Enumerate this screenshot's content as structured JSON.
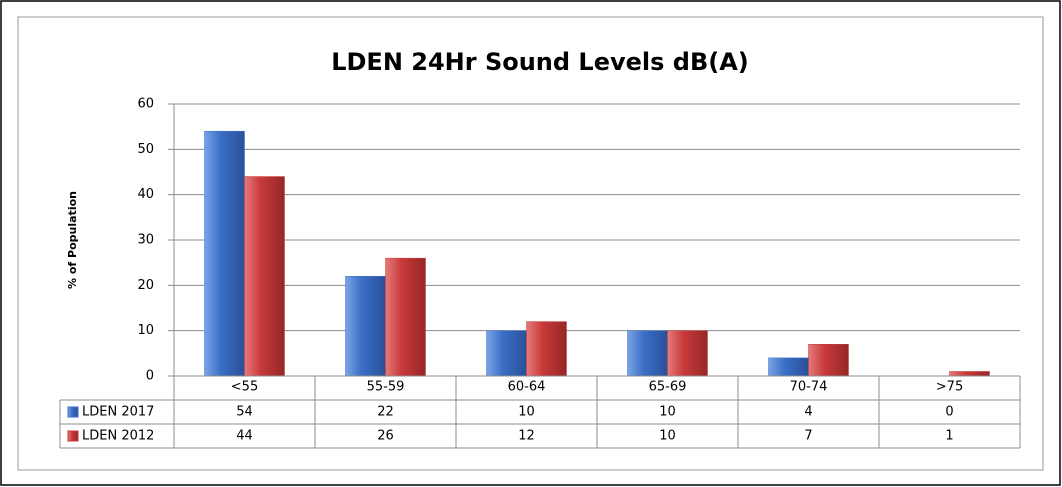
{
  "chart_data": {
    "type": "bar",
    "title": "LDEN 24Hr Sound Levels dB(A)",
    "y_label": "% of Population",
    "categories": [
      "<55",
      "55-59",
      "60-64",
      "65-69",
      "70-74",
      ">75"
    ],
    "series": [
      {
        "name": "LDEN 2017",
        "color": "#3b6fc6",
        "values": [
          54,
          22,
          10,
          10,
          4,
          0
        ]
      },
      {
        "name": "LDEN 2012",
        "color": "#c83a3a",
        "values": [
          44,
          26,
          12,
          10,
          7,
          1
        ]
      }
    ],
    "ylim": [
      0,
      60
    ],
    "yticks": [
      0,
      10,
      20,
      30,
      40,
      50,
      60
    ],
    "grid": true,
    "data_table": true
  }
}
